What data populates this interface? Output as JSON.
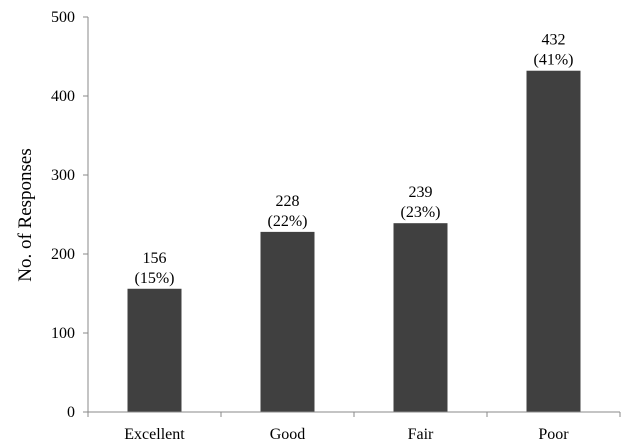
{
  "chart_data": {
    "type": "bar",
    "title": "",
    "xlabel": "",
    "ylabel": "No. of Responses",
    "categories": [
      "Excellent",
      "Good",
      "Fair",
      "Poor"
    ],
    "values": [
      156,
      228,
      239,
      432
    ],
    "data_labels": [
      {
        "count": "156",
        "percent": "(15%)"
      },
      {
        "count": "228",
        "percent": "(22%)"
      },
      {
        "count": "239",
        "percent": "(23%)"
      },
      {
        "count": "432",
        "percent": "(41%)"
      }
    ],
    "ylim": [
      0,
      500
    ],
    "yticks": [
      0,
      100,
      200,
      300,
      400,
      500
    ],
    "grid": false,
    "legend": "none",
    "bar_color": "#404040"
  }
}
